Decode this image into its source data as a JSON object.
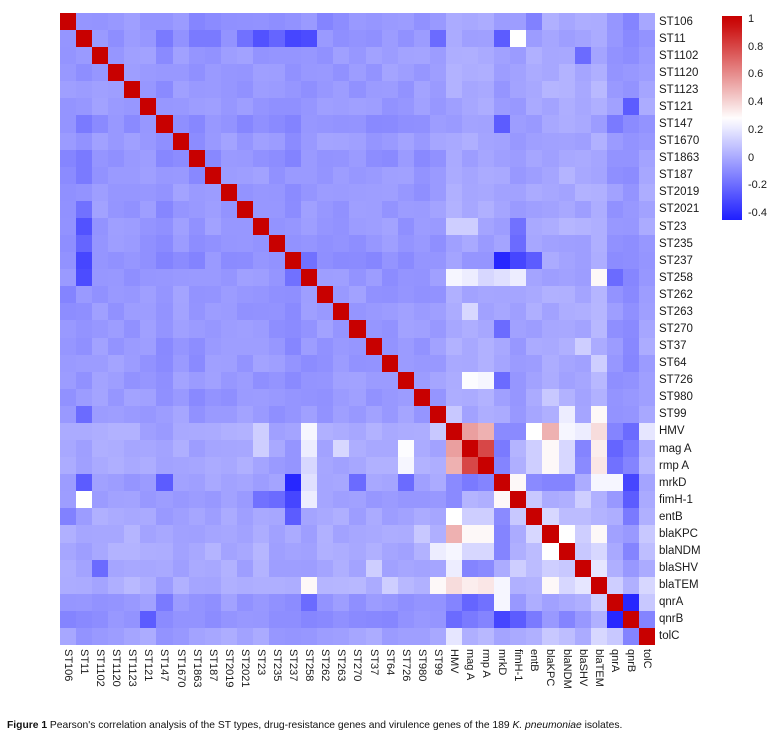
{
  "figure_caption": {
    "prefix": "Figure 1",
    "body": " Pearson's correlation analysis of the ST types, drug-resistance genes and virulence genes of the 189 ",
    "species": "K. pneumoniae",
    "suffix": " isolates."
  },
  "chart_data": {
    "type": "heatmap",
    "description": "Pearson correlation matrix, 37x37, symmetric, diagonal = 1",
    "labels": [
      "ST106",
      "ST11",
      "ST1102",
      "ST1120",
      "ST1123",
      "ST121",
      "ST147",
      "ST1670",
      "ST1863",
      "ST187",
      "ST2019",
      "ST2021",
      "ST23",
      "ST235",
      "ST237",
      "ST258",
      "ST262",
      "ST263",
      "ST270",
      "ST37",
      "ST64",
      "ST726",
      "ST980",
      "ST99",
      "HMV",
      "mag A",
      "rmp A",
      "mrkD",
      "fimH-1",
      "entB",
      "blaKPC",
      "blaNDM",
      "blaSHV",
      "blaTEM",
      "qnrA",
      "qnrB",
      "tolC"
    ],
    "colormap": {
      "negative_color": "#1e1eff",
      "mid_color": "#ffffff",
      "positive_color": "#c80000",
      "white_point": 0.28,
      "vmin": -0.45,
      "vmax": 1.02
    },
    "colorbar_ticks": [
      "1",
      "0.8",
      "0.6",
      "0.4",
      "0.2",
      "0",
      "-0.2",
      "-0.4"
    ],
    "colorbar_tick_values": [
      1,
      0.8,
      0.6,
      0.4,
      0.2,
      0,
      -0.2,
      -0.4
    ],
    "legend_position": "right",
    "grid": false,
    "matrix_spec": {
      "diagonal": 1,
      "base_offdiagonal": -0.05,
      "jitter_amplitude": 0.035,
      "label_bias": {
        "ST106": -0.015,
        "ST11": -0.02,
        "ST147": -0.03,
        "ST1863": -0.02,
        "ST235": -0.015,
        "ST237": -0.03,
        "ST258": -0.01,
        "ST99": 0.01,
        "HMV": 0.05,
        "mag A": 0.05,
        "rmp A": 0.05,
        "mrkD": 0.02,
        "fimH-1": 0.02,
        "entB": 0.04,
        "blaKPC": 0.06,
        "blaNDM": 0.06,
        "blaSHV": 0.05,
        "blaTEM": 0.07,
        "qnrA": 0.0,
        "qnrB": -0.03,
        "tolC": 0.03
      },
      "notable_pairs": [
        [
          "ST11",
          "ST147",
          -0.15
        ],
        [
          "ST11",
          "ST187",
          -0.15
        ],
        [
          "ST11",
          "ST1863",
          -0.15
        ],
        [
          "ST11",
          "ST2021",
          -0.18
        ],
        [
          "ST11",
          "ST23",
          -0.28
        ],
        [
          "ST11",
          "ST235",
          -0.22
        ],
        [
          "ST11",
          "ST237",
          -0.32
        ],
        [
          "ST11",
          "ST258",
          -0.3
        ],
        [
          "ST11",
          "ST99",
          -0.2
        ],
        [
          "ST11",
          "mrkD",
          -0.25
        ],
        [
          "ST11",
          "fimH-1",
          0.28
        ],
        [
          "ST106",
          "ST262",
          -0.12
        ],
        [
          "ST106",
          "qnrB",
          -0.12
        ],
        [
          "ST106",
          "entB",
          -0.13
        ],
        [
          "ST1102",
          "blaSHV",
          -0.2
        ],
        [
          "ST121",
          "qnrB",
          -0.25
        ],
        [
          "ST147",
          "mrkD",
          -0.25
        ],
        [
          "ST147",
          "qnrA",
          -0.15
        ],
        [
          "ST235",
          "fimH-1",
          -0.2
        ],
        [
          "ST237",
          "mrkD",
          -0.42
        ],
        [
          "ST237",
          "fimH-1",
          -0.32
        ],
        [
          "ST237",
          "entB",
          -0.25
        ],
        [
          "ST237",
          "ST258",
          -0.18
        ],
        [
          "ST258",
          "HMV",
          0.25
        ],
        [
          "ST258",
          "mag A",
          0.22
        ],
        [
          "ST258",
          "rmp A",
          0.15
        ],
        [
          "ST258",
          "mrkD",
          0.18
        ],
        [
          "ST258",
          "fimH-1",
          0.22
        ],
        [
          "ST258",
          "blaTEM",
          0.3
        ],
        [
          "ST258",
          "qnrA",
          -0.2
        ],
        [
          "ST263",
          "mag A",
          0.15
        ],
        [
          "ST270",
          "mrkD",
          -0.2
        ],
        [
          "ST23",
          "HMV",
          0.12
        ],
        [
          "ST23",
          "mag A",
          0.12
        ],
        [
          "ST23",
          "fimH-1",
          -0.18
        ],
        [
          "ST37",
          "blaSHV",
          0.12
        ],
        [
          "ST64",
          "blaTEM",
          0.12
        ],
        [
          "ST726",
          "mag A",
          0.27
        ],
        [
          "ST726",
          "rmp A",
          0.25
        ],
        [
          "ST726",
          "mrkD",
          -0.2
        ],
        [
          "ST980",
          "blaKPC",
          0.1
        ],
        [
          "ST99",
          "HMV",
          0.1
        ],
        [
          "ST99",
          "blaNDM",
          0.22
        ],
        [
          "ST99",
          "blaTEM",
          0.3
        ],
        [
          "HMV",
          "mag A",
          0.55
        ],
        [
          "HMV",
          "rmp A",
          0.5
        ],
        [
          "HMV",
          "mrkD",
          -0.1
        ],
        [
          "HMV",
          "fimH-1",
          -0.1
        ],
        [
          "HMV",
          "entB",
          0.28
        ],
        [
          "HMV",
          "blaKPC",
          0.5
        ],
        [
          "HMV",
          "blaNDM",
          0.25
        ],
        [
          "HMV",
          "blaSHV",
          0.22
        ],
        [
          "HMV",
          "blaTEM",
          0.38
        ],
        [
          "HMV",
          "qnrA",
          -0.12
        ],
        [
          "HMV",
          "qnrB",
          -0.2
        ],
        [
          "HMV",
          "tolC",
          0.2
        ],
        [
          "mag A",
          "rmp A",
          0.8
        ],
        [
          "mag A",
          "mrkD",
          -0.15
        ],
        [
          "mag A",
          "entB",
          0.12
        ],
        [
          "mag A",
          "blaKPC",
          0.3
        ],
        [
          "mag A",
          "blaNDM",
          0.15
        ],
        [
          "mag A",
          "blaSHV",
          -0.12
        ],
        [
          "mag A",
          "blaTEM",
          0.33
        ],
        [
          "mag A",
          "qnrA",
          -0.22
        ],
        [
          "mag A",
          "qnrB",
          -0.15
        ],
        [
          "rmp A",
          "mrkD",
          -0.12
        ],
        [
          "rmp A",
          "entB",
          0.12
        ],
        [
          "rmp A",
          "blaKPC",
          0.3
        ],
        [
          "rmp A",
          "blaNDM",
          0.15
        ],
        [
          "rmp A",
          "blaSHV",
          -0.1
        ],
        [
          "rmp A",
          "blaTEM",
          0.35
        ],
        [
          "rmp A",
          "qnrA",
          -0.18
        ],
        [
          "rmp A",
          "qnrB",
          -0.12
        ],
        [
          "mrkD",
          "fimH-1",
          0.3
        ],
        [
          "mrkD",
          "entB",
          -0.1
        ],
        [
          "mrkD",
          "blaKPC",
          -0.12
        ],
        [
          "mrkD",
          "blaNDM",
          -0.12
        ],
        [
          "mrkD",
          "blaTEM",
          0.25
        ],
        [
          "mrkD",
          "qnrA",
          0.25
        ],
        [
          "mrkD",
          "qnrB",
          -0.32
        ],
        [
          "fimH-1",
          "entB",
          0.1
        ],
        [
          "fimH-1",
          "blaSHV",
          0.12
        ],
        [
          "fimH-1",
          "qnrB",
          -0.25
        ],
        [
          "entB",
          "blaKPC",
          0.15
        ],
        [
          "entB",
          "qnrB",
          -0.15
        ],
        [
          "blaKPC",
          "blaNDM",
          0.28
        ],
        [
          "blaKPC",
          "blaSHV",
          0.12
        ],
        [
          "blaKPC",
          "blaTEM",
          0.3
        ],
        [
          "blaKPC",
          "tolC",
          0.1
        ],
        [
          "blaNDM",
          "blaSHV",
          0.1
        ],
        [
          "blaNDM",
          "blaTEM",
          0.15
        ],
        [
          "blaNDM",
          "qnrB",
          -0.12
        ],
        [
          "blaSHV",
          "blaTEM",
          0.2
        ],
        [
          "blaTEM",
          "qnrA",
          0.12
        ],
        [
          "blaTEM",
          "tolC",
          0.15
        ],
        [
          "qnrA",
          "qnrB",
          -0.42
        ],
        [
          "qnrA",
          "tolC",
          0.1
        ],
        [
          "qnrB",
          "tolC",
          -0.12
        ]
      ]
    }
  }
}
